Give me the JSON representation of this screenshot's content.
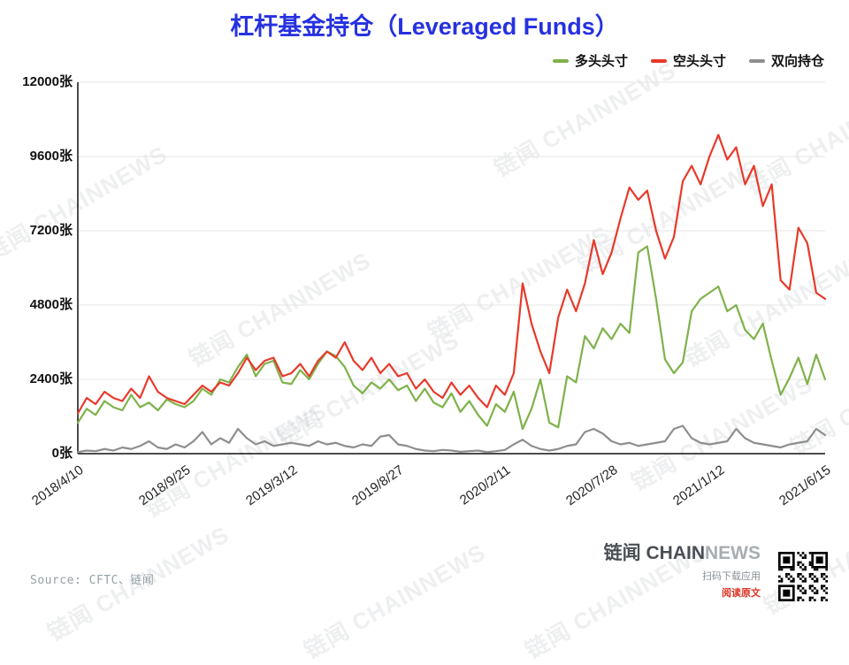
{
  "title": {
    "text": "杠杆基金持仓（Leveraged Funds）",
    "color": "#2631e0"
  },
  "legend": {
    "items": [
      {
        "label": "多头头寸",
        "color": "#7fb24a"
      },
      {
        "label": "空头头寸",
        "color": "#e8392a"
      },
      {
        "label": "双向持仓",
        "color": "#8e8e8e"
      }
    ]
  },
  "watermark_text": "链闻 CHAINNEWS",
  "source_text": "Source: CFTC、链闻",
  "footer": {
    "brand_cn": "链闻",
    "brand_en_bold": "CHAIN",
    "brand_en_light": "NEWS",
    "scan_label": "扫码下载应用",
    "read_label": "阅读原文",
    "read_color": "#e03323"
  },
  "chart_data": {
    "type": "line",
    "title": "杠杆基金持仓（Leveraged Funds）",
    "xlabel": "",
    "ylabel": "",
    "unit": "张",
    "ylim": [
      0,
      12000
    ],
    "grid": true,
    "legend_position": "top-right",
    "y_ticks": [
      {
        "value": 0,
        "label": "0张"
      },
      {
        "value": 2400,
        "label": "2400张"
      },
      {
        "value": 4800,
        "label": "4800张"
      },
      {
        "value": 7200,
        "label": "7200张"
      },
      {
        "value": 9600,
        "label": "9600张"
      },
      {
        "value": 12000,
        "label": "12000张"
      }
    ],
    "x_ticks": [
      {
        "index": 0,
        "label": "2018/4/10"
      },
      {
        "index": 12,
        "label": "2018/9/25"
      },
      {
        "index": 24,
        "label": "2019/3/12"
      },
      {
        "index": 36,
        "label": "2019/8/27"
      },
      {
        "index": 48,
        "label": "2020/2/11"
      },
      {
        "index": 60,
        "label": "2020/7/28"
      },
      {
        "index": 72,
        "label": "2021/1/12"
      },
      {
        "index": 84,
        "label": "2021/6/15"
      }
    ],
    "series": [
      {
        "name": "多头头寸",
        "color": "#7fb24a",
        "values": [
          1000,
          1450,
          1250,
          1700,
          1500,
          1400,
          1900,
          1500,
          1650,
          1400,
          1750,
          1600,
          1500,
          1700,
          2100,
          1900,
          2400,
          2300,
          2800,
          3200,
          2500,
          2900,
          3000,
          2300,
          2250,
          2700,
          2400,
          2900,
          3300,
          3150,
          2800,
          2200,
          1950,
          2300,
          2100,
          2400,
          2050,
          2200,
          1700,
          2100,
          1650,
          1500,
          1950,
          1350,
          1700,
          1250,
          900,
          1600,
          1350,
          2000,
          800,
          1450,
          2400,
          1000,
          850,
          2500,
          2300,
          3800,
          3400,
          4050,
          3700,
          4200,
          3900,
          6500,
          6700,
          5000,
          3050,
          2600,
          2950,
          4600,
          5000,
          5200,
          5400,
          4600,
          4800,
          4000,
          3700,
          4200,
          3000,
          1900,
          2450,
          3100,
          2250,
          3200,
          2400
        ]
      },
      {
        "name": "空头头寸",
        "color": "#e8392a",
        "values": [
          1300,
          1800,
          1600,
          2000,
          1800,
          1700,
          2100,
          1800,
          2500,
          2000,
          1800,
          1700,
          1600,
          1900,
          2200,
          2000,
          2300,
          2200,
          2600,
          3100,
          2700,
          3000,
          3100,
          2500,
          2600,
          2900,
          2500,
          3000,
          3300,
          3100,
          3600,
          3000,
          2700,
          3100,
          2600,
          2900,
          2500,
          2600,
          2100,
          2400,
          2000,
          1800,
          2300,
          1900,
          2200,
          1800,
          1500,
          2200,
          1900,
          2600,
          5500,
          4200,
          3300,
          2600,
          4400,
          5300,
          4600,
          5500,
          6900,
          5800,
          6500,
          7600,
          8600,
          8200,
          8500,
          7200,
          6300,
          7000,
          8800,
          9300,
          8700,
          9600,
          10300,
          9500,
          9900,
          8700,
          9300,
          8000,
          8700,
          5600,
          5300,
          7300,
          6800,
          5200,
          5000
        ]
      },
      {
        "name": "双向持仓",
        "color": "#8e8e8e",
        "values": [
          50,
          100,
          80,
          150,
          100,
          200,
          150,
          250,
          400,
          200,
          150,
          300,
          200,
          400,
          700,
          300,
          500,
          350,
          800,
          500,
          300,
          400,
          250,
          300,
          350,
          300,
          250,
          400,
          300,
          350,
          250,
          200,
          300,
          250,
          550,
          600,
          300,
          250,
          150,
          100,
          80,
          120,
          100,
          60,
          80,
          100,
          50,
          80,
          120,
          300,
          450,
          250,
          150,
          100,
          150,
          250,
          300,
          700,
          800,
          650,
          400,
          300,
          350,
          250,
          300,
          350,
          400,
          800,
          900,
          500,
          350,
          300,
          350,
          400,
          800,
          500,
          350,
          300,
          250,
          200,
          300,
          350,
          400,
          800,
          600
        ]
      }
    ]
  }
}
